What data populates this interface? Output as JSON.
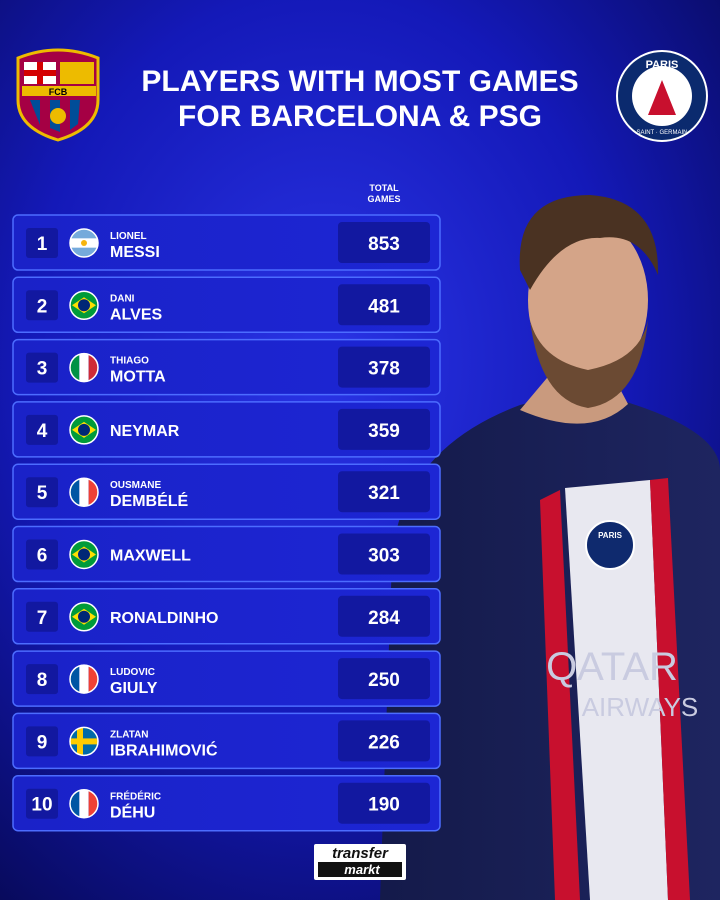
{
  "header": {
    "title": [
      "PLAYERS WITH MOST GAMES",
      "FOR BARCELONA & PSG"
    ]
  },
  "logos": {
    "left": "FCB",
    "right": [
      "PARIS",
      "SAINT · GERMAIN"
    ]
  },
  "table": {
    "column_header": [
      "TOTAL",
      "GAMES"
    ],
    "rows": [
      [
        1,
        "LIONEL",
        "MESSI",
        853
      ],
      [
        2,
        "DANI",
        "ALVES",
        481
      ],
      [
        3,
        "THIAGO",
        "MOTTA",
        378
      ],
      [
        4,
        null,
        "NEYMAR",
        359
      ],
      [
        5,
        "OUSMANE",
        "DEMBÉLÉ",
        321
      ],
      [
        6,
        null,
        "MAXWELL",
        303
      ],
      [
        7,
        null,
        "RONALDINHO",
        284
      ],
      [
        8,
        "LUDOVIC",
        "GIULY",
        250
      ],
      [
        9,
        "ZLATAN",
        "IBRAHIMOVIĆ",
        226
      ],
      [
        10,
        "FRÉDÉRIC",
        "DÉHU",
        190
      ]
    ]
  },
  "photo": {
    "badge": "PARIS",
    "sponsor": [
      "QATAR",
      "AIRWAYS"
    ]
  },
  "footer": [
    "transfer",
    "markt"
  ]
}
